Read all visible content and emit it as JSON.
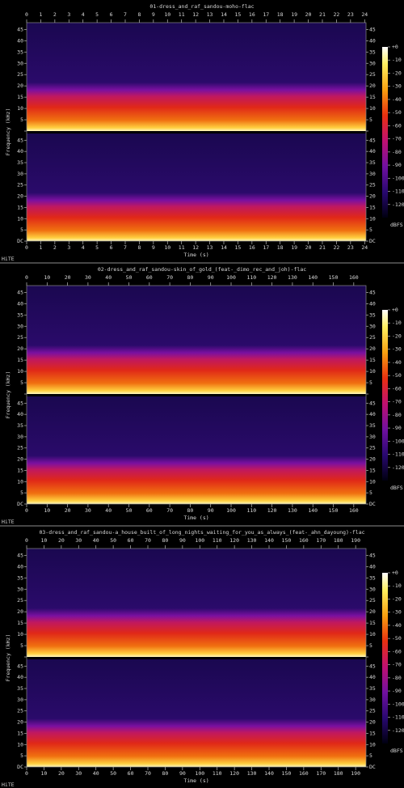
{
  "chart_data": [
    {
      "type": "spectrogram",
      "title": "01-dress_and_raf_sandou-moho-flac",
      "xlabel": "Time (s)",
      "ylabel": "Frequency (kHz)",
      "footer": "HiTE",
      "xlim": [
        0,
        24.1
      ],
      "xticks": [
        0,
        1,
        2,
        3,
        4,
        5,
        6,
        7,
        8,
        9,
        10,
        11,
        12,
        13,
        14,
        15,
        16,
        17,
        18,
        19,
        20,
        21,
        22,
        23,
        24
      ],
      "ylim": [
        0,
        48
      ],
      "yticks": [
        {
          "value": 0,
          "label": "DC"
        },
        5,
        10,
        15,
        20,
        25,
        30,
        35,
        40,
        45
      ],
      "colorbar": {
        "label": "dBFS",
        "lim": [
          -130,
          0
        ],
        "ticks": [
          {
            "value": 0,
            "label": "+0"
          },
          -10,
          -20,
          -30,
          -40,
          -50,
          -60,
          -70,
          -80,
          -90,
          -100,
          -110,
          -120
        ]
      }
    },
    {
      "type": "spectrogram",
      "title": "02-dress_and_raf_sandou-skin_of_gold_(feat-_dimo_rec_and_joh)-flac",
      "xlabel": "Time (s)",
      "ylabel": "Frequency (kHz)",
      "footer": "HiTE",
      "xlim": [
        0,
        166
      ],
      "xticks": [
        0,
        10,
        20,
        30,
        40,
        50,
        60,
        70,
        80,
        90,
        100,
        110,
        120,
        130,
        140,
        150,
        160
      ],
      "ylim": [
        0,
        48
      ],
      "yticks": [
        {
          "value": 0,
          "label": "DC"
        },
        5,
        10,
        15,
        20,
        25,
        30,
        35,
        40,
        45
      ],
      "colorbar": {
        "label": "dBFS",
        "lim": [
          -130,
          0
        ],
        "ticks": [
          {
            "value": 0,
            "label": "+0"
          },
          -10,
          -20,
          -30,
          -40,
          -50,
          -60,
          -70,
          -80,
          -90,
          -100,
          -110,
          -120
        ]
      }
    },
    {
      "type": "spectrogram",
      "title": "03-dress_and_raf_sandou-a_house_built_of_long_nights_waiting_for_you_as_always_(feat-_ahn_dayoung)-flac",
      "xlabel": "Time (s)",
      "ylabel": "Frequency (kHz)",
      "footer": "HiTE",
      "xlim": [
        0,
        196
      ],
      "xticks": [
        0,
        10,
        20,
        30,
        40,
        50,
        60,
        70,
        80,
        90,
        100,
        110,
        120,
        130,
        140,
        150,
        160,
        170,
        180,
        190
      ],
      "ylim": [
        0,
        48
      ],
      "yticks": [
        {
          "value": 0,
          "label": "DC"
        },
        5,
        10,
        15,
        20,
        25,
        30,
        35,
        40,
        45
      ],
      "colorbar": {
        "label": "dBFS",
        "lim": [
          -130,
          0
        ],
        "ticks": [
          {
            "value": 0,
            "label": "+0"
          },
          -10,
          -20,
          -30,
          -40,
          -50,
          -60,
          -70,
          -80,
          -90,
          -100,
          -110,
          -120
        ]
      }
    }
  ]
}
